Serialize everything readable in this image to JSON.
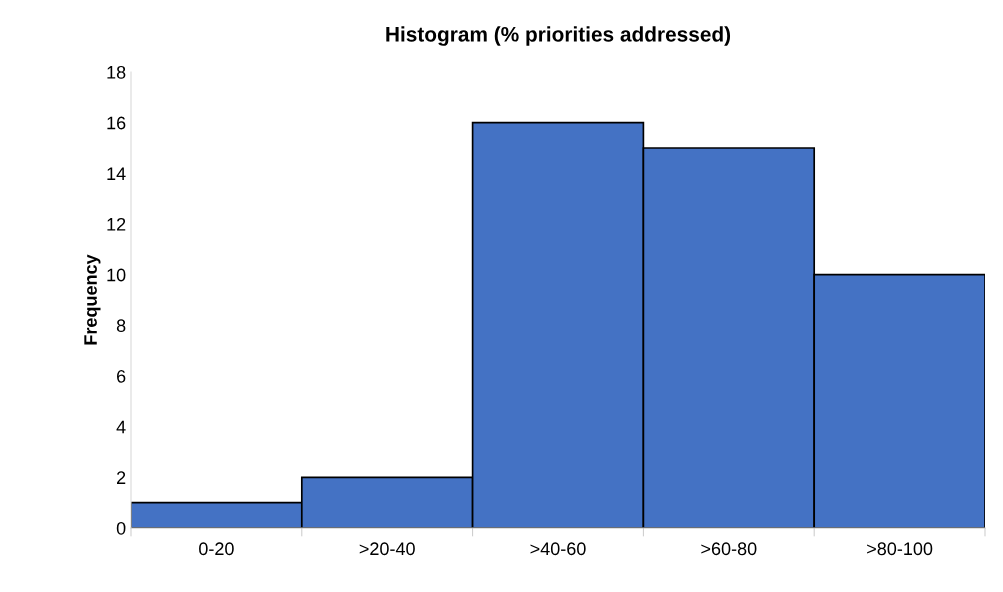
{
  "chart_data": {
    "type": "bar",
    "title": "Histogram (% priorities addressed)",
    "ylabel": "Frequency",
    "categories": [
      "0-20",
      ">20-40",
      ">40-60",
      ">60-80",
      ">80-100"
    ],
    "values": [
      1,
      2,
      16,
      15,
      10
    ],
    "color": "#4472c4",
    "ylim": [
      0,
      18
    ],
    "yticks": [
      0,
      2,
      4,
      6,
      8,
      10,
      12,
      14,
      16,
      18
    ],
    "grid": false,
    "legend": false
  }
}
